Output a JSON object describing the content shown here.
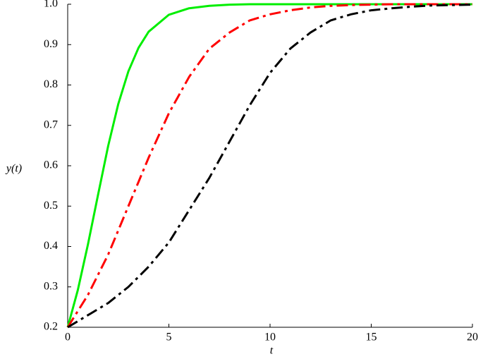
{
  "chart_data": {
    "type": "line",
    "xlabel": "t",
    "ylabel": "y(t)",
    "x": [
      0,
      0.5,
      1,
      1.5,
      2,
      2.5,
      3,
      3.5,
      4,
      5,
      6,
      7,
      8,
      9,
      10,
      11,
      12,
      13,
      14,
      15,
      16,
      17,
      18,
      19,
      20
    ],
    "series": [
      {
        "color": "#00ee00",
        "style": "solid",
        "values": [
          0.2,
          0.292,
          0.405,
          0.528,
          0.649,
          0.753,
          0.834,
          0.892,
          0.932,
          0.974,
          0.99,
          0.996,
          0.999,
          1,
          1,
          1,
          1,
          1,
          1,
          1,
          1,
          1,
          1,
          1,
          1
        ]
      },
      {
        "color": "#ff0000",
        "style": "dashdot",
        "values": [
          0.2,
          0.24,
          0.28,
          0.33,
          0.38,
          0.44,
          0.5,
          0.56,
          0.62,
          0.73,
          0.82,
          0.89,
          0.93,
          0.96,
          0.975,
          0.985,
          0.992,
          0.996,
          0.998,
          0.999,
          1,
          1,
          1,
          1,
          1
        ]
      },
      {
        "color": "#000000",
        "style": "dashdot",
        "values": [
          0.2,
          0.215,
          0.23,
          0.245,
          0.26,
          0.28,
          0.3,
          0.325,
          0.35,
          0.41,
          0.49,
          0.57,
          0.66,
          0.75,
          0.83,
          0.89,
          0.93,
          0.96,
          0.975,
          0.985,
          0.99,
          0.994,
          0.997,
          0.998,
          0.999
        ]
      }
    ],
    "xlim": [
      0,
      20
    ],
    "ylim": [
      0.2,
      1
    ],
    "xticks": [
      0,
      5,
      10,
      15,
      20
    ],
    "yticks": [
      0.2,
      0.3,
      0.4,
      0.5,
      0.6,
      0.7,
      0.8,
      0.9,
      {
        "value": 1,
        "label": "1.0"
      }
    ]
  }
}
